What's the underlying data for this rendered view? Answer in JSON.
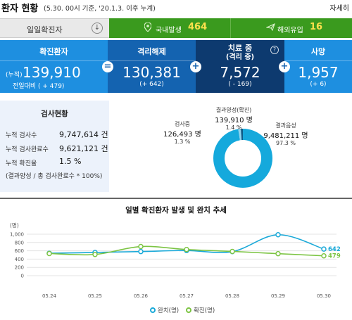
{
  "header": {
    "title": "환자 현황",
    "basis": "(5.30. 00시 기준, '20.1.3. 이후 누계)",
    "more": "자세히"
  },
  "tabs": {
    "daily": {
      "label": "일일확진자",
      "icon": "download-icon"
    },
    "domestic": {
      "label": "국내발생",
      "value": "464",
      "icon": "map-pin-icon"
    },
    "overseas": {
      "label": "해외유입",
      "value": "16",
      "icon": "plane-icon"
    }
  },
  "stats": {
    "confirmed": {
      "label": "확진환자",
      "prefix": "(누적)",
      "value": "139,910",
      "sub": "전일대비 ( + 479)"
    },
    "released": {
      "label": "격리해제",
      "value": "130,381",
      "sub": "(+ 642)"
    },
    "treating": {
      "label": "치료 중",
      "label2": "(격리 중)",
      "value": "7,572",
      "sub": "( - 169)"
    },
    "deceased": {
      "label": "사망",
      "value": "1,957",
      "sub": "(+ 6)"
    },
    "ops": [
      "=",
      "+",
      "+"
    ]
  },
  "tests": {
    "title": "검사현황",
    "rows": [
      {
        "label": "누적 검사수",
        "value": "9,747,614 건"
      },
      {
        "label": "누적 검사완료수",
        "value": "9,621,121 건"
      },
      {
        "label": "누적 확진율",
        "value": "1.5 %"
      }
    ],
    "note": "(결과양성 / 총 검사완료수 * 100%)"
  },
  "donut": {
    "positive": {
      "label": "결과양성(확진)",
      "value": "139,910 명",
      "pct": "1.4 %"
    },
    "testing": {
      "label": "검사중",
      "value": "126,493 명",
      "pct": "1.3 %"
    },
    "negative": {
      "label": "결과음성",
      "value": "9,481,211 명",
      "pct": "97.3 %"
    },
    "colors": {
      "main": "#15a9dc",
      "small1": "#8fd3ee",
      "small2": "#0c5b88"
    },
    "fractions": [
      0.973,
      0.014,
      0.013
    ]
  },
  "chart_data": {
    "type": "line",
    "title": "일별 확진환자 발생 및 완치 추세",
    "ylabel": "(명)",
    "categories": [
      "05.24",
      "05.25",
      "05.26",
      "05.27",
      "05.28",
      "05.29",
      "05.30"
    ],
    "yticks": [
      "0",
      "200",
      "400",
      "600",
      "800",
      "1,000"
    ],
    "ylim": [
      0,
      1000
    ],
    "series": [
      {
        "name": "완치(명)",
        "color": "#1aa9d8",
        "values": [
          541,
          560,
          582,
          607,
          580,
          987,
          642
        ]
      },
      {
        "name": "확진(명)",
        "color": "#7cc443",
        "values": [
          534,
          512,
          703,
          631,
          585,
          531,
          479
        ]
      }
    ],
    "end_labels": [
      "642",
      "479"
    ],
    "legend": "bottom"
  }
}
